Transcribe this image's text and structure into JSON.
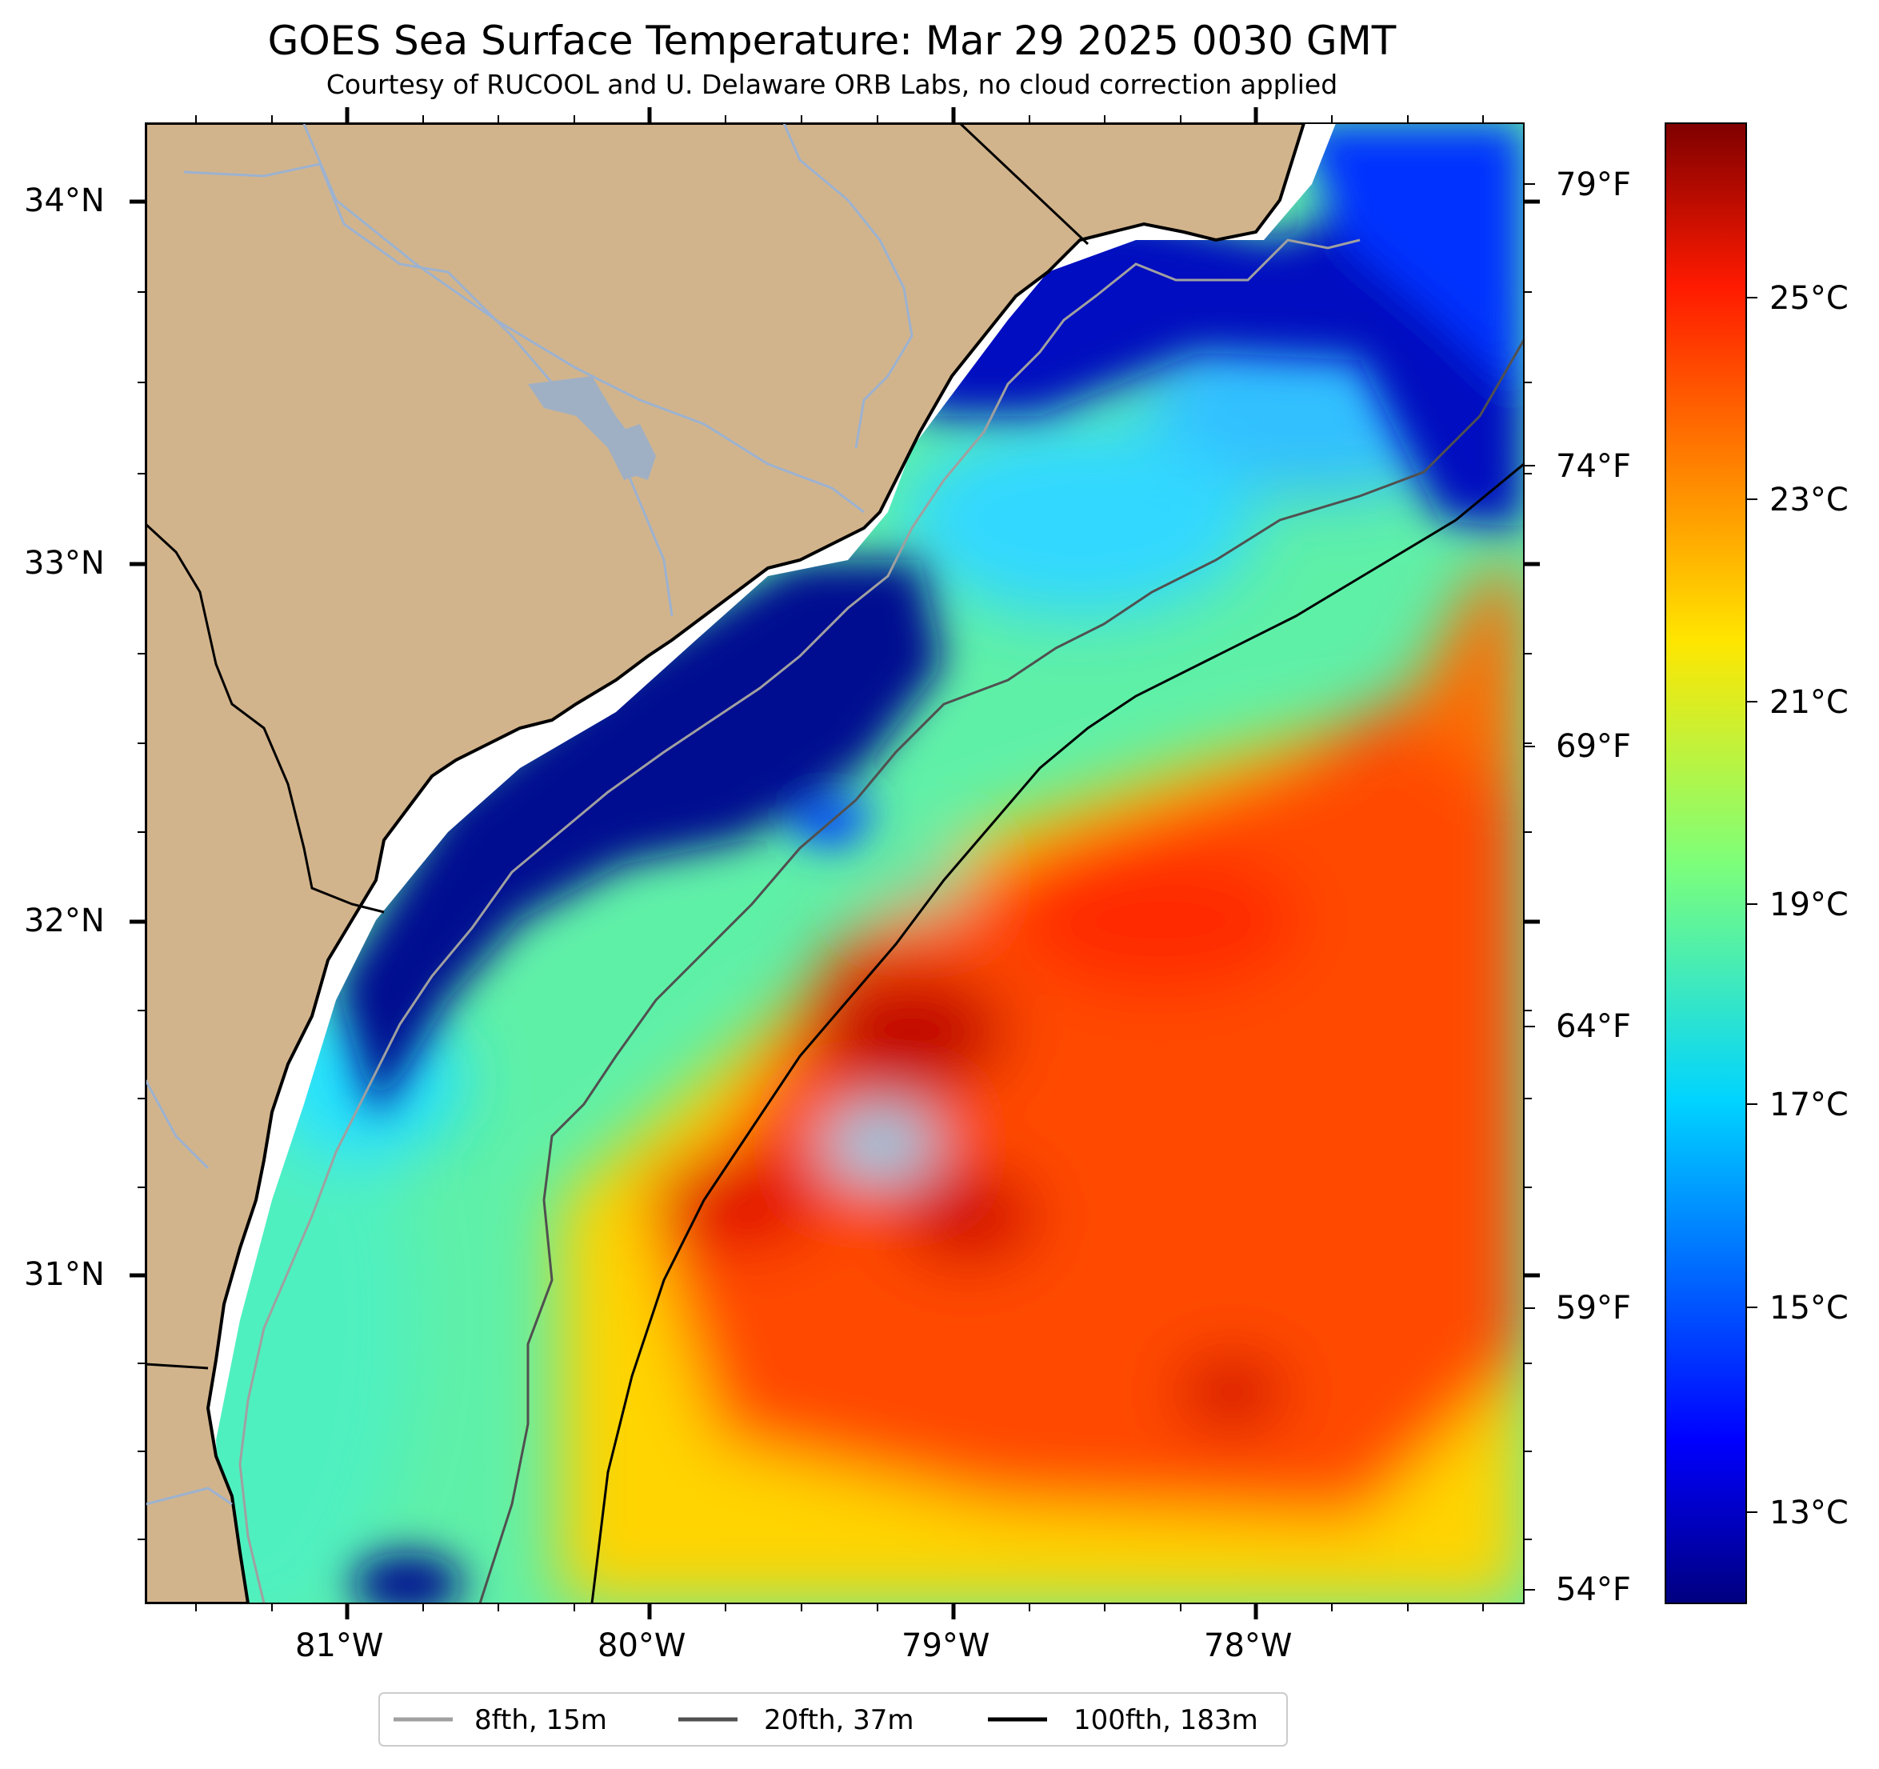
{
  "title": "GOES Sea Surface Temperature: Mar 29 2025 0030 GMT",
  "subtitle": "Courtesy of RUCOOL and U. Delaware ORB Labs, no cloud correction applied",
  "map": {
    "lon_range": [
      -81.66,
      -77.1
    ],
    "lat_range": [
      30.1,
      34.25
    ],
    "lon_ticks": [
      "81°W",
      "80°W",
      "79°W",
      "78°W"
    ],
    "lat_ticks": [
      "34°N",
      "33°N",
      "32°N",
      "31°N"
    ],
    "land_color": "#d2b48c",
    "colormap": "jet"
  },
  "colorbar": {
    "celsius_labels": [
      "25°C",
      "23°C",
      "21°C",
      "19°C",
      "17°C",
      "15°C",
      "13°C"
    ],
    "fahrenheit_labels": [
      "79°F",
      "74°F",
      "69°F",
      "64°F",
      "59°F",
      "54°F"
    ],
    "range_c": [
      12,
      27
    ]
  },
  "legend": [
    {
      "label": "8fth, 15m",
      "color": "#a0a0a0"
    },
    {
      "label": "20fth, 37m",
      "color": "#505050"
    },
    {
      "label": "100fth, 183m",
      "color": "#000000"
    }
  ]
}
